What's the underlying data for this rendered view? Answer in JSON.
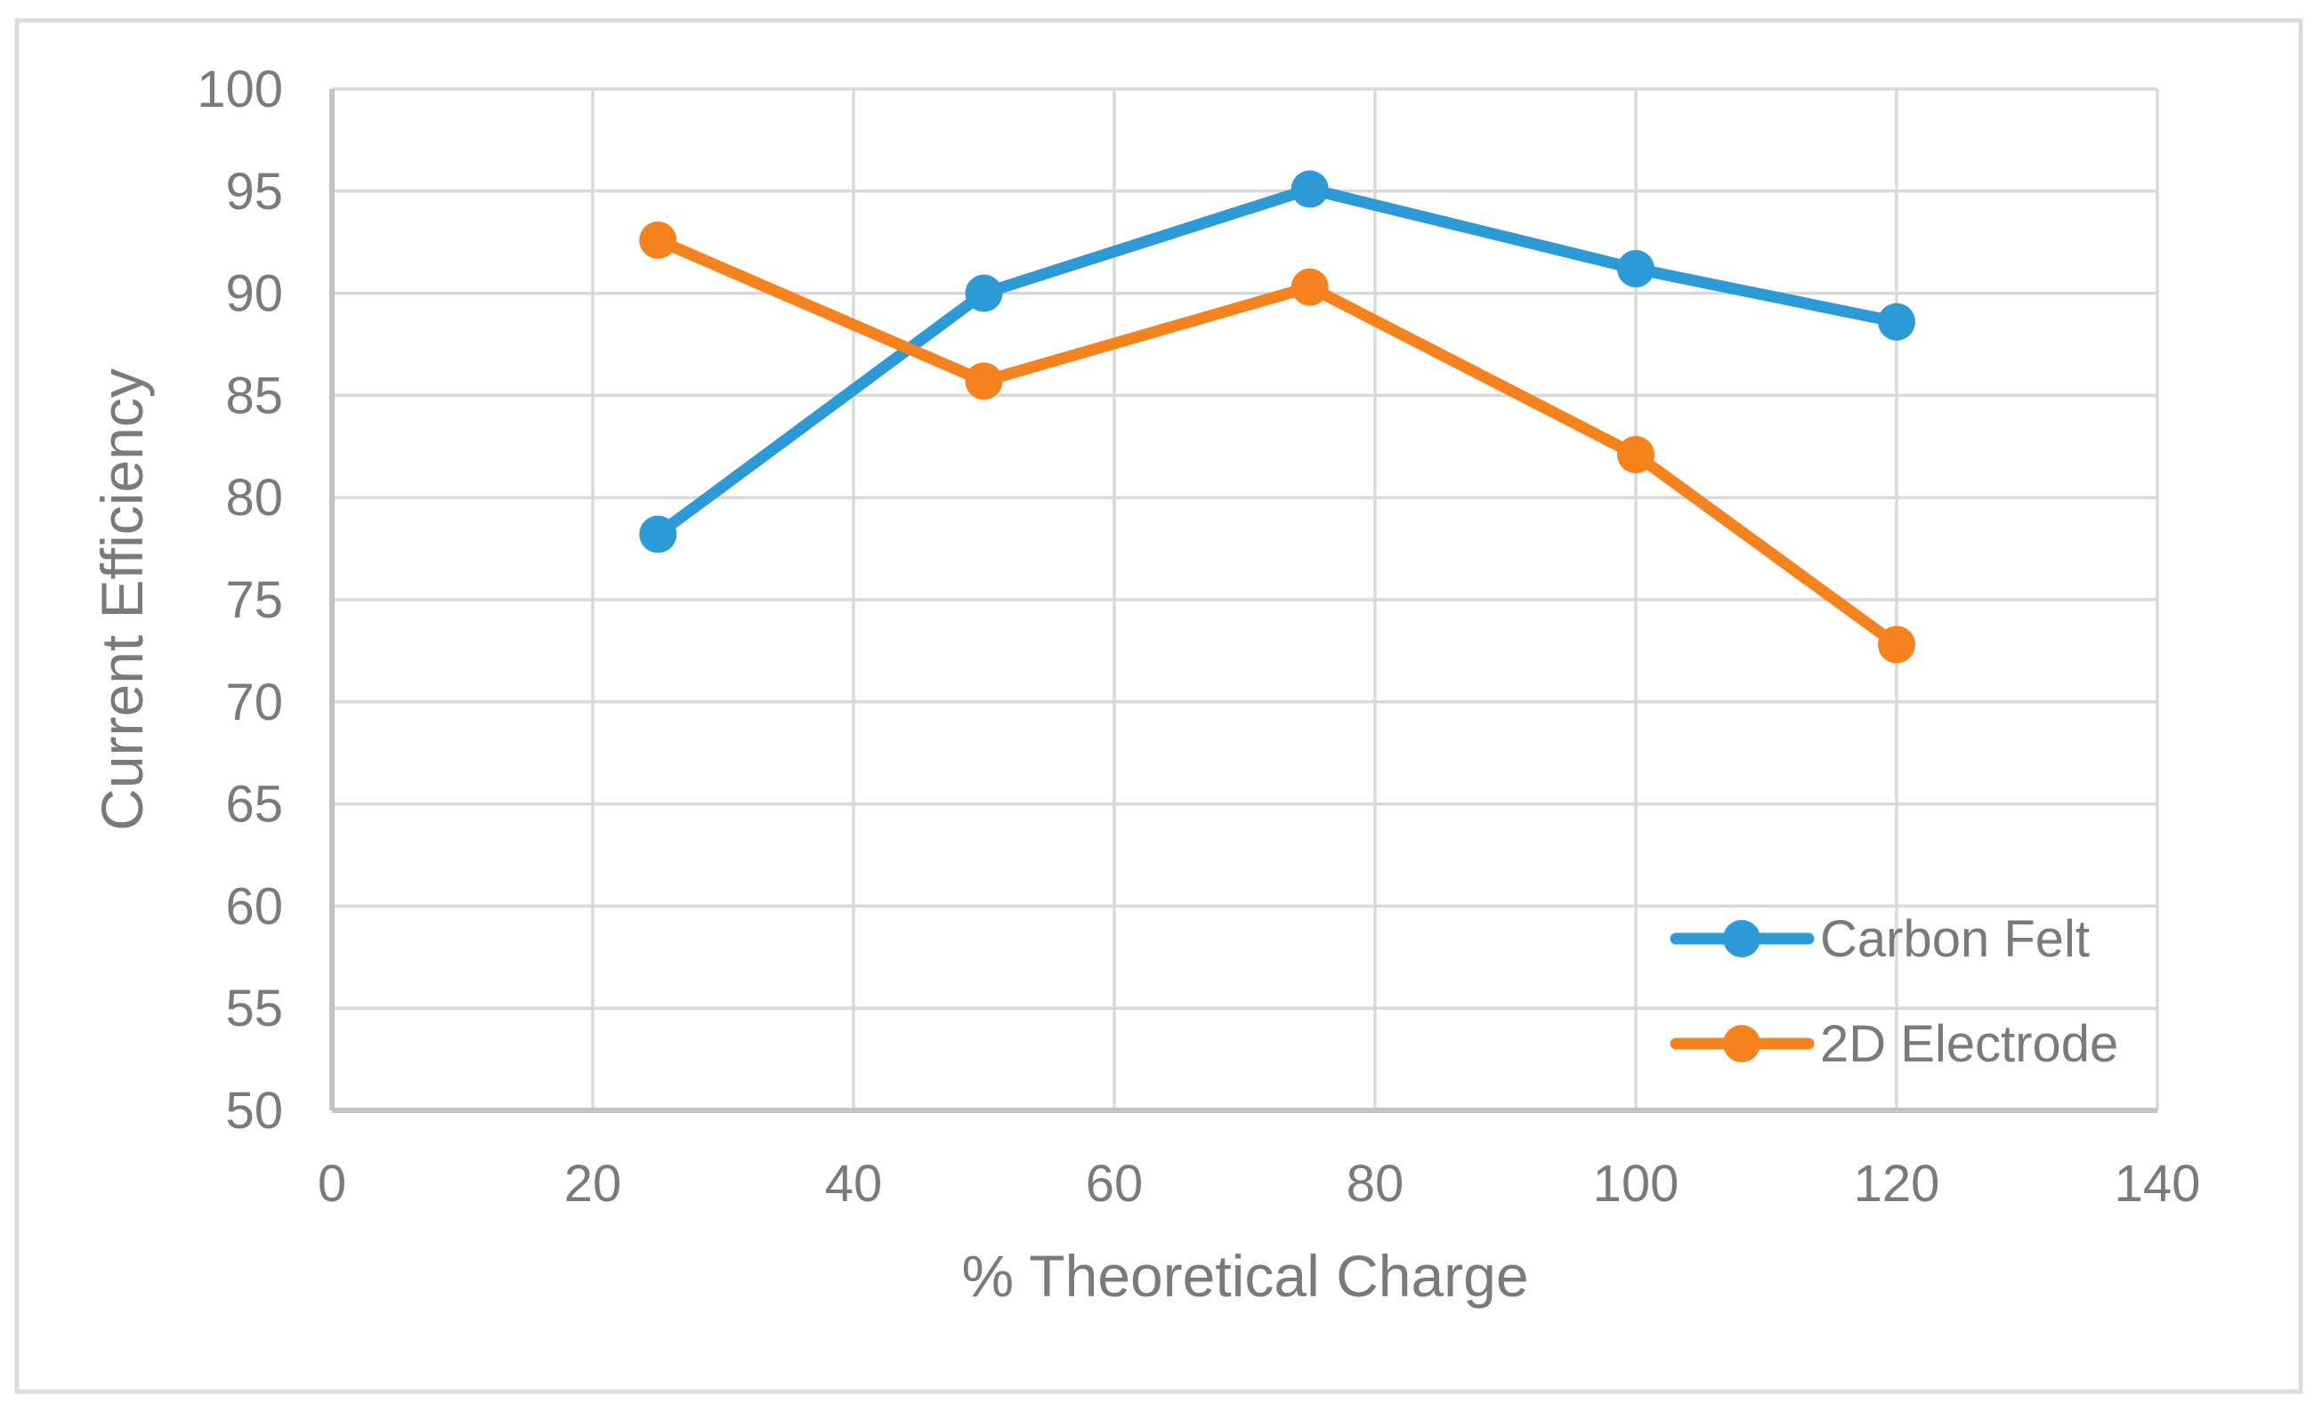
{
  "chart_data": {
    "type": "line",
    "title": "",
    "xlabel": "% Theoretical Charge",
    "ylabel": "Current Efficiency",
    "xlim": [
      0,
      140
    ],
    "ylim": [
      50,
      100
    ],
    "x_ticks": [
      0,
      20,
      40,
      60,
      80,
      100,
      120,
      140
    ],
    "y_ticks": [
      50,
      55,
      60,
      65,
      70,
      75,
      80,
      85,
      90,
      95,
      100
    ],
    "grid": true,
    "legend_position": "inside-bottom-right",
    "x": [
      25,
      50,
      75,
      100,
      120
    ],
    "series": [
      {
        "name": "Carbon Felt",
        "color": "#2B9AD6",
        "values": [
          78.2,
          90.0,
          95.1,
          91.2,
          88.6
        ]
      },
      {
        "name": "2D Electrode",
        "color": "#F6821E",
        "values": [
          92.6,
          85.7,
          90.3,
          82.1,
          72.8
        ]
      }
    ]
  },
  "colors": {
    "background": "#FFFFFF",
    "chart_border": "#DBDBDB",
    "gridline": "#D9D9D9",
    "axis_line": "#C3C3C3",
    "tick_text": "#7A7A7A",
    "axis_title_text": "#7A7A7A",
    "legend_text": "#7A7A7A"
  }
}
